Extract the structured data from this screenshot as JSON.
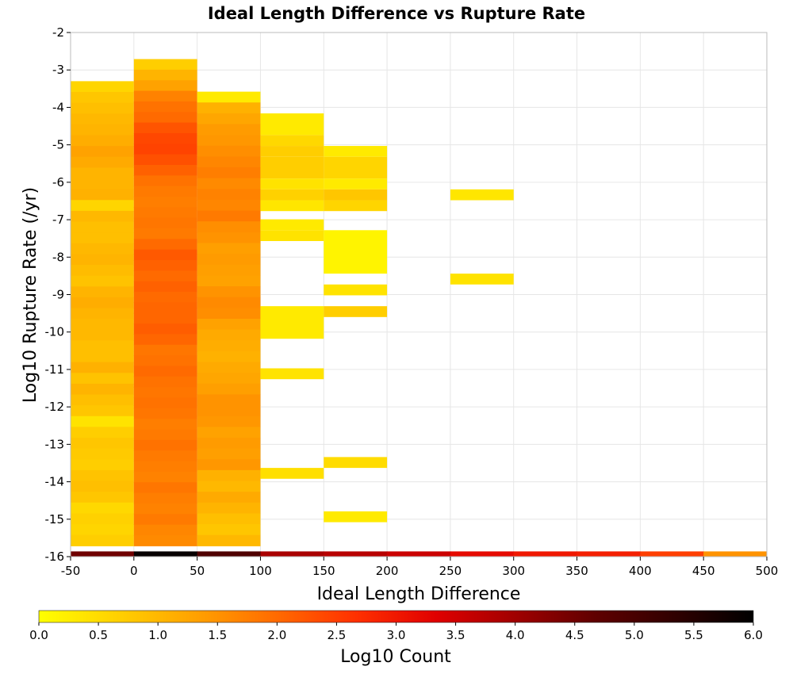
{
  "chart_data": {
    "type": "heatmap",
    "title": "Ideal Length Difference vs Rupture Rate",
    "xlabel": "Ideal Length Difference",
    "ylabel": "Log10 Rupture Rate (/yr)",
    "xlim": [
      -50,
      500
    ],
    "ylim": [
      -16,
      -2
    ],
    "x_ticks": [
      "-50",
      "0",
      "50",
      "100",
      "150",
      "200",
      "250",
      "300",
      "350",
      "400",
      "450",
      "500"
    ],
    "y_ticks": [
      "-2",
      "-3",
      "-4",
      "-5",
      "-6",
      "-7",
      "-8",
      "-9",
      "-10",
      "-11",
      "-12",
      "-13",
      "-14",
      "-15",
      "-16"
    ],
    "x_bin_width": 50,
    "y_bin_height": 0.29,
    "grid": true,
    "colorbar": {
      "label": "Log10 Count",
      "range": [
        0,
        6
      ],
      "ticks": [
        "0.0",
        "0.5",
        "1.0",
        "1.5",
        "2.0",
        "2.5",
        "3.0",
        "3.5",
        "4.0",
        "4.5",
        "5.0",
        "5.5",
        "6.0"
      ],
      "colors": [
        "#ffff00",
        "#ffd000",
        "#ffa000",
        "#ff6a00",
        "#ff3000",
        "#e00000",
        "#a00000",
        "#600000",
        "#300000",
        "#000000"
      ]
    },
    "columns": [
      {
        "x": -50,
        "y_top": -3.3,
        "y_bottom": -15.71,
        "log10_counts": [
          0.6,
          0.8,
          0.9,
          1.0,
          1.05,
          1.15,
          1.3,
          1.2,
          1.05,
          1.05,
          1.1,
          0.6,
          1.0,
          0.9,
          0.9,
          1.0,
          1.05,
          0.95,
          0.85,
          1.05,
          1.15,
          1.05,
          1.0,
          1.0,
          0.9,
          0.9,
          1.1,
          0.85,
          1.05,
          0.9,
          0.8,
          0.4,
          0.7,
          0.8,
          0.75,
          0.7,
          0.85,
          0.9,
          0.8,
          0.55,
          0.65,
          0.6,
          0.7
        ]
      },
      {
        "x": 0,
        "y_top": -2.71,
        "y_bottom": -15.71,
        "log10_counts": [
          0.7,
          1.05,
          1.3,
          1.7,
          1.9,
          2.0,
          2.25,
          2.4,
          2.45,
          2.3,
          2.1,
          1.9,
          1.8,
          1.75,
          1.8,
          1.85,
          1.8,
          2.0,
          2.2,
          2.1,
          2.0,
          2.1,
          2.0,
          2.05,
          2.05,
          2.15,
          2.05,
          1.85,
          1.9,
          2.0,
          1.9,
          1.85,
          1.9,
          1.85,
          1.75,
          1.8,
          1.9,
          1.8,
          1.75,
          1.7,
          1.85,
          1.75,
          1.7,
          1.8,
          1.65,
          1.6
        ]
      },
      {
        "x": 50,
        "y_top": -3.58,
        "y_bottom": -15.71,
        "log10_counts": [
          0.3,
          1.1,
          1.25,
          1.4,
          1.45,
          1.55,
          1.65,
          1.75,
          1.6,
          1.7,
          1.65,
          1.8,
          1.55,
          1.5,
          1.35,
          1.4,
          1.35,
          1.3,
          1.5,
          1.6,
          1.55,
          1.3,
          1.2,
          1.15,
          1.1,
          1.2,
          1.25,
          1.35,
          1.5,
          1.5,
          1.45,
          1.3,
          1.4,
          1.35,
          1.45,
          1.1,
          1.0,
          1.2,
          1.05,
          0.9,
          0.8,
          1.0
        ]
      },
      {
        "x": 100,
        "y_top": -4.16,
        "y_bottom": -16.0,
        "blocks": [
          {
            "y_top": -4.16,
            "y_bottom": -4.74,
            "v": 0.3
          },
          {
            "y_top": -4.74,
            "y_bottom": -5.03,
            "v": 0.55
          },
          {
            "y_top": -5.03,
            "y_bottom": -5.32,
            "v": 0.7
          },
          {
            "y_top": -5.32,
            "y_bottom": -5.9,
            "v": 0.7
          },
          {
            "y_top": -5.9,
            "y_bottom": -6.19,
            "v": 0.4
          },
          {
            "y_top": -6.19,
            "y_bottom": -6.48,
            "v": 0.65
          },
          {
            "y_top": -6.48,
            "y_bottom": -6.77,
            "v": 0.35
          },
          {
            "y_top": -6.99,
            "y_bottom": -7.28,
            "v": 0.3
          },
          {
            "y_top": -7.28,
            "y_bottom": -7.57,
            "v": 0.4
          },
          {
            "y_top": -9.31,
            "y_bottom": -10.18,
            "v": 0.3
          },
          {
            "y_top": -10.97,
            "y_bottom": -11.26,
            "v": 0.4
          },
          {
            "y_top": -13.63,
            "y_bottom": -13.92,
            "v": 0.45
          }
        ]
      },
      {
        "x": 150,
        "y_top": -5.03,
        "y_bottom": -16.0,
        "blocks": [
          {
            "y_top": -5.03,
            "y_bottom": -5.32,
            "v": 0.3
          },
          {
            "y_top": -5.32,
            "y_bottom": -5.9,
            "v": 0.6
          },
          {
            "y_top": -5.9,
            "y_bottom": -6.19,
            "v": 0.3
          },
          {
            "y_top": -6.19,
            "y_bottom": -6.48,
            "v": 0.8
          },
          {
            "y_top": -6.48,
            "y_bottom": -6.77,
            "v": 0.6
          },
          {
            "y_top": -7.28,
            "y_bottom": -8.44,
            "v": 0.15
          },
          {
            "y_top": -8.73,
            "y_bottom": -9.02,
            "v": 0.4
          },
          {
            "y_top": -9.31,
            "y_bottom": -9.6,
            "v": 0.7
          },
          {
            "y_top": -13.34,
            "y_bottom": -13.63,
            "v": 0.5
          },
          {
            "y_top": -14.79,
            "y_bottom": -15.08,
            "v": 0.3
          }
        ]
      },
      {
        "x": 250,
        "y_top": -6.19,
        "y_bottom": -8.73,
        "blocks": [
          {
            "y_top": -6.19,
            "y_bottom": -6.48,
            "v": 0.35
          },
          {
            "y_top": -8.44,
            "y_bottom": -8.73,
            "v": 0.4
          }
        ]
      }
    ],
    "bottom_row": {
      "y_top": -15.86,
      "y_bottom": -16.0,
      "x": [
        -50,
        0,
        50,
        100,
        150,
        200,
        250,
        300,
        350,
        400,
        450
      ],
      "log10_counts": [
        4.5,
        5.9,
        4.9,
        3.9,
        3.75,
        3.55,
        3.2,
        3.0,
        2.9,
        2.5,
        1.5
      ]
    }
  }
}
